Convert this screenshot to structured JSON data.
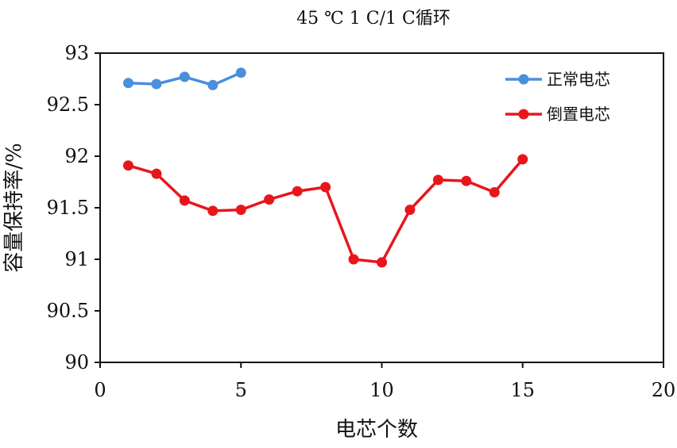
{
  "chart_data": {
    "type": "line",
    "title": "45 ℃ 1 C/1 C循环",
    "xlabel": "电芯个数",
    "ylabel": "容量保持率/%",
    "xlim": [
      0,
      20
    ],
    "ylim": [
      90,
      93
    ],
    "x_ticks": [
      "0",
      "5",
      "10",
      "15",
      "20"
    ],
    "y_ticks": [
      "90",
      "90.5",
      "91",
      "91.5",
      "92",
      "92.5",
      "93"
    ],
    "grid": false,
    "legend_position": "top-right",
    "series": [
      {
        "name": "正常电芯",
        "color": "#4a8fdc",
        "x": [
          1,
          2,
          3,
          4,
          5
        ],
        "y": [
          92.71,
          92.7,
          92.77,
          92.69,
          92.81
        ]
      },
      {
        "name": "倒置电芯",
        "color": "#e8161b",
        "x": [
          1,
          2,
          3,
          4,
          5,
          6,
          7,
          8,
          9,
          10,
          11,
          12,
          13,
          14,
          15
        ],
        "y": [
          91.91,
          91.83,
          91.57,
          91.47,
          91.48,
          91.58,
          91.66,
          91.7,
          91.0,
          90.97,
          91.48,
          91.77,
          91.76,
          91.65,
          91.97
        ]
      }
    ]
  }
}
